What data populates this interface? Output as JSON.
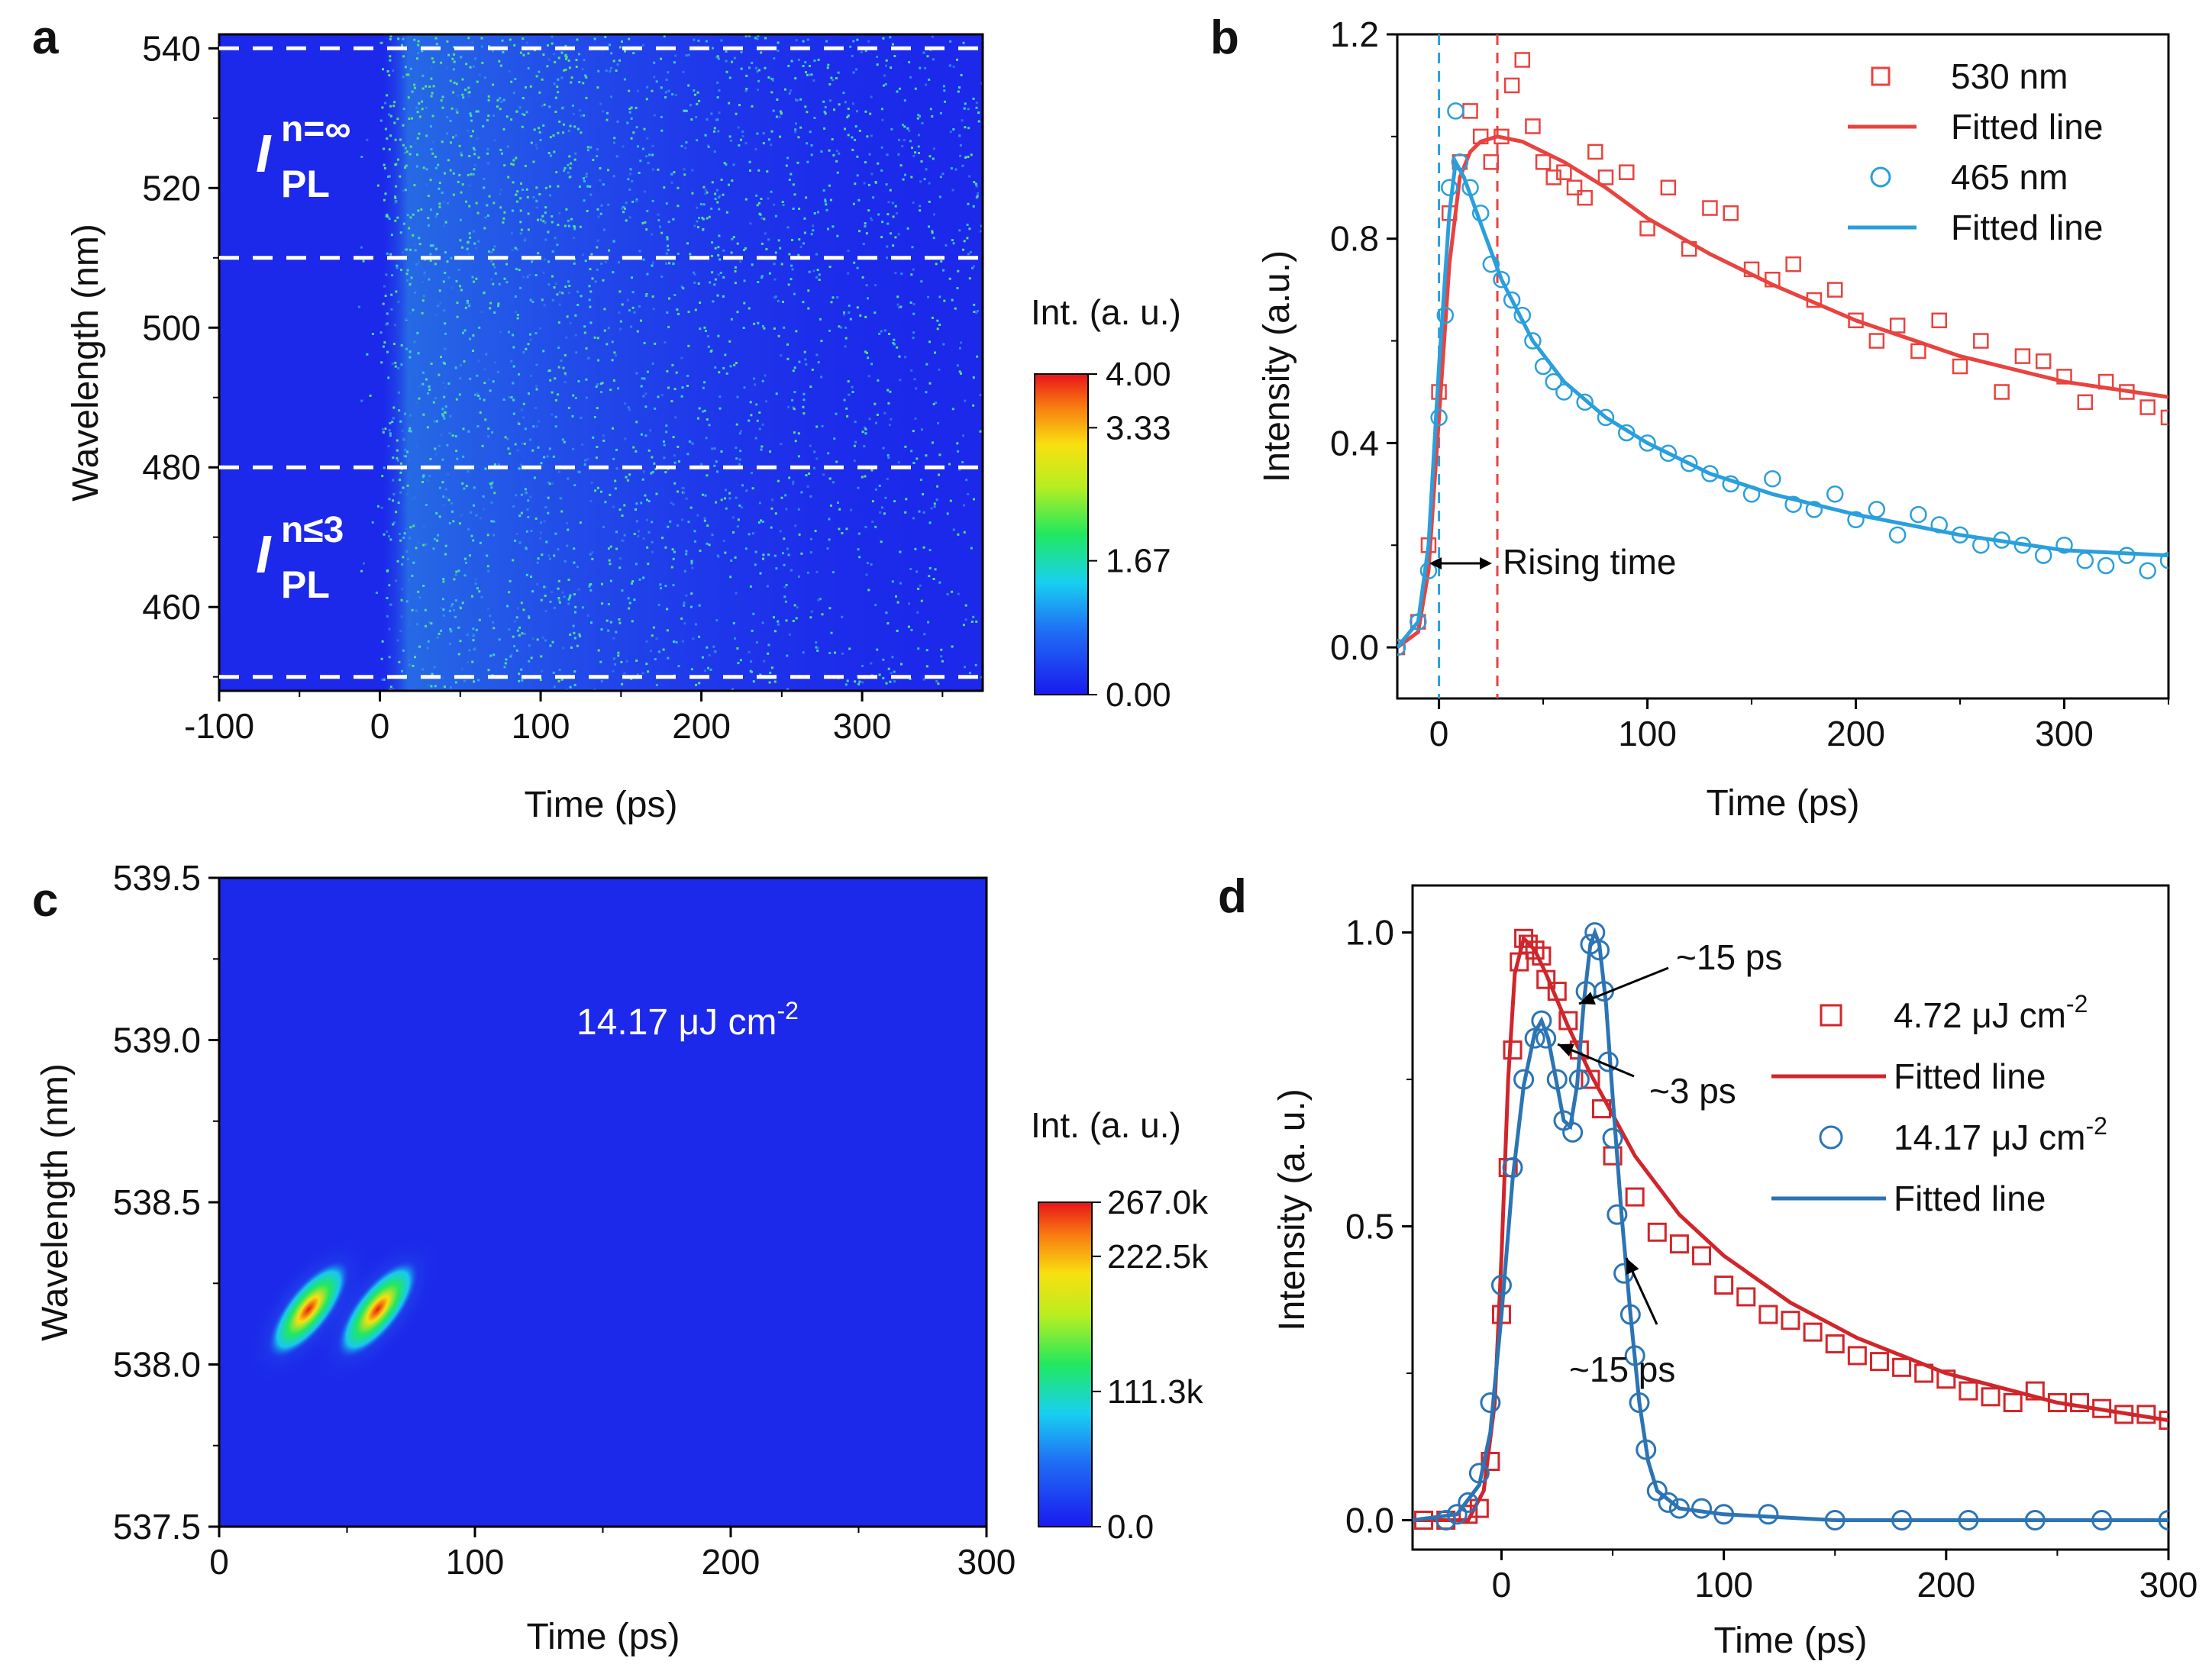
{
  "panels": {
    "a": {
      "letter": "a",
      "xlabel": "Time (ps)",
      "ylabel": "Wavelength (nm)",
      "label_upper_main": "I",
      "label_upper_sub": "PL",
      "label_upper_sup": "n=∞",
      "label_lower_main": "I",
      "label_lower_sub": "PL",
      "label_lower_sup": "n≤3",
      "colorbar_title": "Int. (a. u.)",
      "colorbar_ticks": [
        "4.00",
        "3.33",
        "1.67",
        "0.00"
      ]
    },
    "b": {
      "letter": "b",
      "xlabel": "Time (ps)",
      "ylabel": "Intensity (a.u.)",
      "annotation": "Rising time",
      "legend": [
        "530 nm",
        "Fitted line",
        "465 nm",
        "Fitted line"
      ]
    },
    "c": {
      "letter": "c",
      "xlabel": "Time (ps)",
      "ylabel": "Wavelength (nm)",
      "fluence_label": "14.17 μJ cm",
      "fluence_sup": "-2",
      "colorbar_title": "Int. (a. u.)",
      "colorbar_ticks": [
        "267.0k",
        "222.5k",
        "111.3k",
        "0.0"
      ]
    },
    "d": {
      "letter": "d",
      "xlabel": "Time (ps)",
      "ylabel": "Intensity (a. u.)",
      "annotations": [
        "~15 ps",
        "~3 ps",
        "~15 ps"
      ],
      "legend": [
        "4.72 μJ cm",
        "Fitted line",
        "14.17 μJ cm",
        "Fitted line"
      ],
      "legend_sup": "-2"
    }
  },
  "colors": {
    "red": "#e8433f",
    "blue": "#2a9fdc",
    "dark_red": "#d0262b",
    "steel_blue": "#2c74b4",
    "map_bg": "#1c28ea"
  },
  "chart_data": [
    {
      "panel": "a",
      "type": "heatmap",
      "title": "",
      "xlabel": "Time (ps)",
      "ylabel": "Wavelength (nm)",
      "xlim": [
        -100,
        375
      ],
      "ylim": [
        448,
        542
      ],
      "xticks": [
        -100,
        0,
        100,
        200,
        300
      ],
      "yticks": [
        460,
        480,
        500,
        520,
        540
      ],
      "dashed_lines_nm": [
        540,
        510,
        480,
        450
      ],
      "colorbar_range": [
        0.0,
        4.0
      ],
      "colorbar_ticks": [
        0.0,
        1.67,
        3.33,
        4.0
      ]
    },
    {
      "panel": "b",
      "type": "line",
      "xlabel": "Time (ps)",
      "ylabel": "Intensity (a.u.)",
      "xlim": [
        -20,
        350
      ],
      "ylim": [
        -0.1,
        1.2
      ],
      "xticks": [
        0,
        100,
        200,
        300
      ],
      "yticks": [
        0.0,
        0.4,
        0.8,
        1.2
      ],
      "vlines": [
        {
          "x": 0,
          "color": "blue"
        },
        {
          "x": 28,
          "color": "red"
        }
      ],
      "annotation": "Rising time",
      "series": [
        {
          "name": "530 nm",
          "kind": "scatter",
          "marker": "square",
          "x": [
            -20,
            -10,
            -5,
            0,
            5,
            10,
            15,
            20,
            25,
            30,
            35,
            40,
            45,
            50,
            55,
            60,
            65,
            70,
            75,
            80,
            90,
            100,
            110,
            120,
            130,
            140,
            150,
            160,
            170,
            180,
            190,
            200,
            210,
            220,
            230,
            240,
            250,
            260,
            270,
            280,
            290,
            300,
            310,
            320,
            330,
            340,
            350
          ],
          "y": [
            0.0,
            0.05,
            0.2,
            0.5,
            0.85,
            0.95,
            1.05,
            1.0,
            0.95,
            1.0,
            1.1,
            1.15,
            1.02,
            0.95,
            0.92,
            0.93,
            0.9,
            0.88,
            0.97,
            0.92,
            0.93,
            0.82,
            0.9,
            0.78,
            0.86,
            0.85,
            0.74,
            0.72,
            0.75,
            0.68,
            0.7,
            0.64,
            0.6,
            0.63,
            0.58,
            0.64,
            0.55,
            0.6,
            0.5,
            0.57,
            0.56,
            0.53,
            0.48,
            0.52,
            0.5,
            0.47,
            0.45
          ]
        },
        {
          "name": "Fitted line",
          "kind": "line",
          "x": [
            -20,
            -10,
            -5,
            0,
            5,
            10,
            15,
            20,
            28,
            40,
            60,
            80,
            100,
            130,
            160,
            200,
            250,
            300,
            350
          ],
          "y": [
            0.0,
            0.03,
            0.15,
            0.45,
            0.75,
            0.92,
            0.97,
            0.99,
            1.0,
            0.99,
            0.95,
            0.9,
            0.84,
            0.77,
            0.71,
            0.64,
            0.57,
            0.52,
            0.49
          ]
        },
        {
          "name": "465 nm",
          "kind": "scatter",
          "marker": "circle",
          "x": [
            -20,
            -10,
            -5,
            0,
            3,
            5,
            8,
            10,
            15,
            20,
            25,
            30,
            35,
            40,
            45,
            50,
            55,
            60,
            70,
            80,
            90,
            100,
            110,
            120,
            130,
            140,
            150,
            160,
            170,
            180,
            190,
            200,
            210,
            220,
            230,
            240,
            250,
            260,
            270,
            280,
            290,
            300,
            310,
            320,
            330,
            340,
            350
          ],
          "y": [
            0.0,
            0.05,
            0.15,
            0.45,
            0.65,
            0.9,
            1.05,
            0.95,
            0.9,
            0.85,
            0.75,
            0.72,
            0.68,
            0.65,
            0.6,
            0.55,
            0.52,
            0.5,
            0.48,
            0.45,
            0.42,
            0.4,
            0.38,
            0.36,
            0.34,
            0.32,
            0.3,
            0.33,
            0.28,
            0.27,
            0.3,
            0.25,
            0.27,
            0.22,
            0.26,
            0.24,
            0.22,
            0.2,
            0.21,
            0.2,
            0.18,
            0.2,
            0.17,
            0.16,
            0.18,
            0.15,
            0.17
          ]
        },
        {
          "name": "Fitted line",
          "kind": "line",
          "x": [
            -20,
            -10,
            -5,
            0,
            5,
            8,
            12,
            20,
            30,
            45,
            60,
            80,
            100,
            130,
            160,
            200,
            250,
            300,
            350
          ],
          "y": [
            0.0,
            0.05,
            0.2,
            0.55,
            0.85,
            0.95,
            0.92,
            0.83,
            0.72,
            0.6,
            0.52,
            0.45,
            0.4,
            0.34,
            0.3,
            0.26,
            0.22,
            0.19,
            0.18
          ]
        }
      ]
    },
    {
      "panel": "c",
      "type": "heatmap",
      "xlabel": "Time (ps)",
      "ylabel": "Wavelength (nm)",
      "xlim": [
        0,
        300
      ],
      "ylim": [
        537.5,
        539.5
      ],
      "xticks": [
        0,
        100,
        200,
        300
      ],
      "yticks": [
        537.5,
        538.0,
        538.5,
        539.0,
        539.5
      ],
      "peaks": [
        {
          "t": 35,
          "wl": 538.17
        },
        {
          "t": 62,
          "wl": 538.17
        }
      ],
      "colorbar_range": [
        0.0,
        267.0
      ],
      "colorbar_ticks": [
        0.0,
        111.3,
        222.5,
        267.0
      ]
    },
    {
      "panel": "d",
      "type": "line",
      "xlabel": "Time (ps)",
      "ylabel": "Intensity (a. u.)",
      "xlim": [
        -40,
        300
      ],
      "ylim": [
        -0.05,
        1.08
      ],
      "xticks": [
        0,
        100,
        200,
        300
      ],
      "yticks": [
        0.0,
        0.5,
        1.0
      ],
      "annotations": [
        {
          "text": "~15 ps",
          "x": 42,
          "y": 0.87
        },
        {
          "text": "~3 ps",
          "x": 27,
          "y": 0.79
        },
        {
          "text": "~15 ps",
          "x": 62,
          "y": 0.42
        }
      ],
      "series": [
        {
          "name": "4.72 μJ cm-2",
          "kind": "scatter",
          "marker": "square",
          "x": [
            -35,
            -25,
            -15,
            -10,
            -5,
            0,
            3,
            5,
            8,
            10,
            12,
            15,
            18,
            20,
            25,
            30,
            35,
            40,
            45,
            50,
            60,
            70,
            80,
            90,
            100,
            110,
            120,
            130,
            140,
            150,
            160,
            170,
            180,
            190,
            200,
            210,
            220,
            230,
            240,
            250,
            260,
            270,
            280,
            290,
            300
          ],
          "y": [
            0.0,
            0.0,
            0.01,
            0.02,
            0.1,
            0.35,
            0.6,
            0.8,
            0.95,
            0.99,
            0.98,
            0.97,
            0.96,
            0.92,
            0.9,
            0.85,
            0.8,
            0.75,
            0.7,
            0.62,
            0.55,
            0.49,
            0.47,
            0.45,
            0.4,
            0.38,
            0.35,
            0.34,
            0.32,
            0.3,
            0.28,
            0.27,
            0.26,
            0.25,
            0.24,
            0.22,
            0.21,
            0.2,
            0.22,
            0.2,
            0.2,
            0.19,
            0.18,
            0.18,
            0.17
          ]
        },
        {
          "name": "Fitted line",
          "kind": "line",
          "x": [
            -40,
            -15,
            -8,
            -3,
            0,
            3,
            6,
            10,
            15,
            20,
            30,
            40,
            50,
            60,
            80,
            100,
            130,
            160,
            200,
            250,
            300
          ],
          "y": [
            0.0,
            0.0,
            0.05,
            0.2,
            0.45,
            0.75,
            0.93,
            0.99,
            0.97,
            0.93,
            0.84,
            0.76,
            0.69,
            0.62,
            0.52,
            0.45,
            0.37,
            0.31,
            0.25,
            0.2,
            0.17
          ]
        },
        {
          "name": "14.17 μJ cm-2",
          "kind": "scatter",
          "marker": "circle",
          "x": [
            -25,
            -20,
            -15,
            -10,
            -5,
            0,
            5,
            10,
            15,
            18,
            20,
            25,
            28,
            32,
            35,
            38,
            40,
            42,
            44,
            46,
            48,
            50,
            52,
            55,
            58,
            60,
            62,
            65,
            70,
            75,
            80,
            90,
            100,
            120,
            150,
            180,
            210,
            240,
            270,
            300
          ],
          "y": [
            0.0,
            0.01,
            0.03,
            0.08,
            0.2,
            0.4,
            0.6,
            0.75,
            0.82,
            0.85,
            0.82,
            0.75,
            0.68,
            0.66,
            0.75,
            0.9,
            0.98,
            1.0,
            0.97,
            0.9,
            0.78,
            0.65,
            0.52,
            0.42,
            0.35,
            0.28,
            0.2,
            0.12,
            0.05,
            0.03,
            0.02,
            0.02,
            0.01,
            0.01,
            0.0,
            0.0,
            0.0,
            0.0,
            0.0,
            0.0
          ]
        },
        {
          "name": "Fitted line",
          "kind": "line",
          "x": [
            -40,
            -20,
            -10,
            -5,
            0,
            5,
            10,
            15,
            18,
            21,
            25,
            28,
            31,
            34,
            37,
            40,
            42,
            44,
            47,
            50,
            54,
            58,
            62,
            66,
            70,
            80,
            100,
            150,
            200,
            300
          ],
          "y": [
            0.0,
            0.01,
            0.06,
            0.15,
            0.35,
            0.58,
            0.74,
            0.83,
            0.85,
            0.82,
            0.74,
            0.68,
            0.67,
            0.74,
            0.88,
            0.98,
            1.0,
            0.98,
            0.88,
            0.72,
            0.52,
            0.35,
            0.2,
            0.1,
            0.05,
            0.02,
            0.01,
            0.0,
            0.0,
            0.0
          ]
        }
      ]
    }
  ]
}
